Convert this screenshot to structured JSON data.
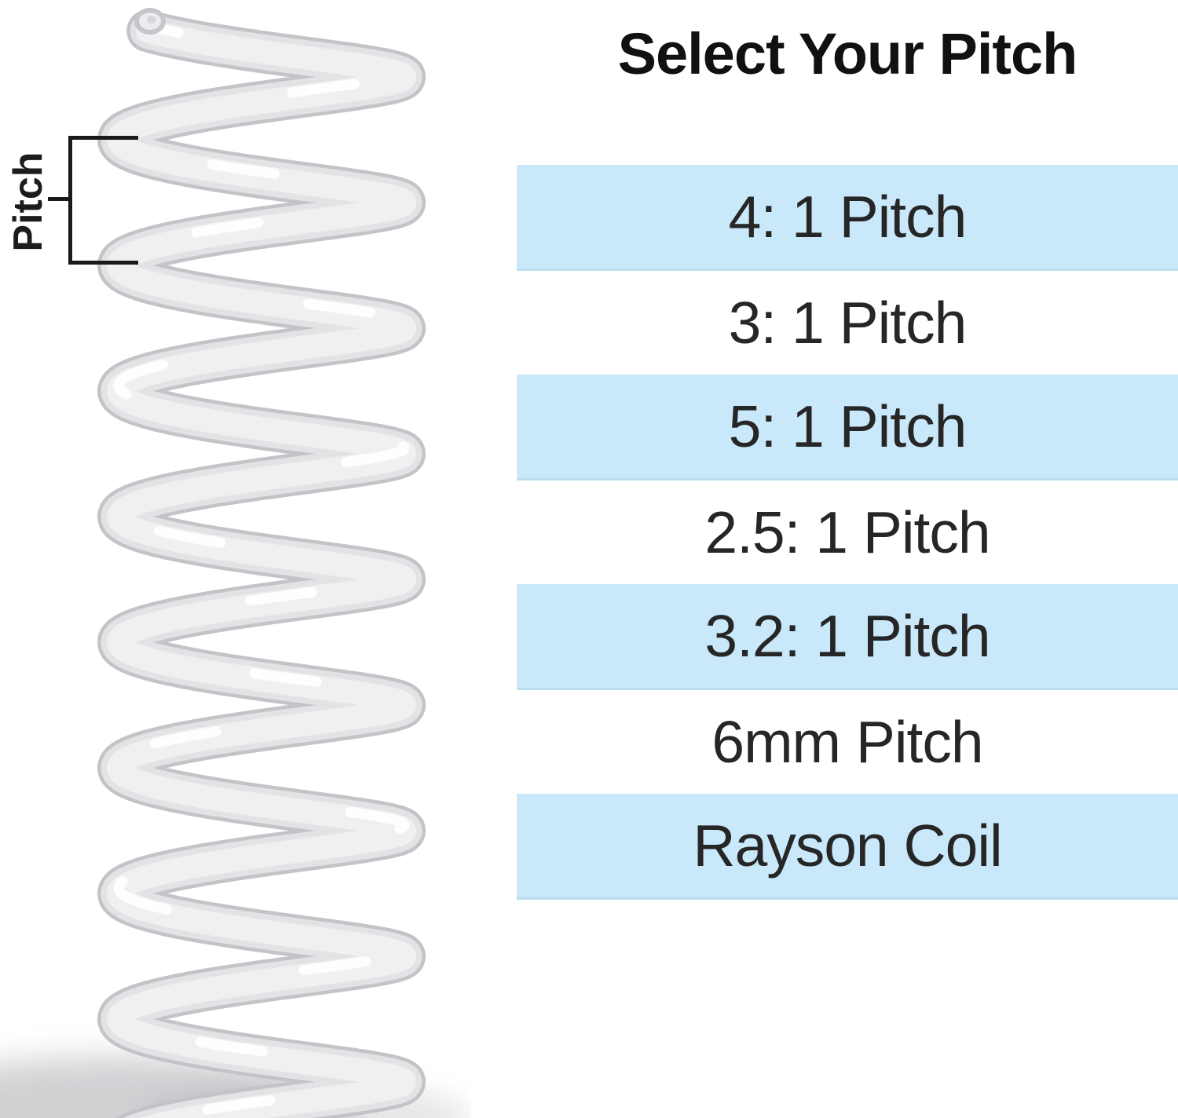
{
  "panel": {
    "title": "Select Your Pitch",
    "options": [
      {
        "label": "4: 1 Pitch",
        "highlighted": true
      },
      {
        "label": "3: 1 Pitch",
        "highlighted": false
      },
      {
        "label": "5: 1 Pitch",
        "highlighted": true
      },
      {
        "label": "2.5: 1 Pitch",
        "highlighted": false
      },
      {
        "label": "3.2: 1 Pitch",
        "highlighted": true
      },
      {
        "label": "6mm Pitch",
        "highlighted": false
      },
      {
        "label": "Rayson Coil",
        "highlighted": true
      }
    ]
  },
  "diagram": {
    "pitch_annotation": "Pitch",
    "coil_description": "white-plastic-spiral-binding-coil"
  },
  "colors": {
    "option_highlight": "#c9e9fa",
    "option_text": "#262626",
    "title_text": "#111111",
    "annotation": "#1a1a1a"
  }
}
